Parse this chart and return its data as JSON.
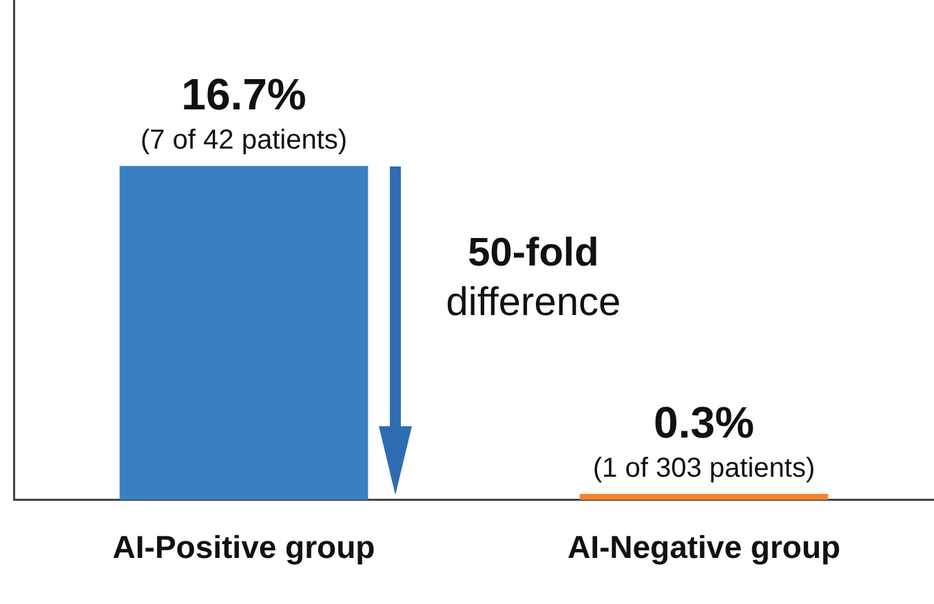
{
  "chart_data": {
    "type": "bar",
    "categories": [
      "AI-Positive group",
      "AI-Negative group"
    ],
    "values": [
      16.7,
      0.3
    ],
    "colors": [
      "#3a7fc1",
      "#f6822b"
    ],
    "value_labels": [
      "16.7%",
      "0.3%"
    ],
    "tick_labels": "x",
    "legend": false,
    "grid": false,
    "annotations": [
      {
        "text": "(7 of 42 patients)",
        "x": "AI-Positive group",
        "y": 16.7
      },
      {
        "text": "(1 of 303 patients)",
        "x": "AI-Negative group",
        "y": 0.3
      },
      "50-fold difference"
    ]
  }
}
